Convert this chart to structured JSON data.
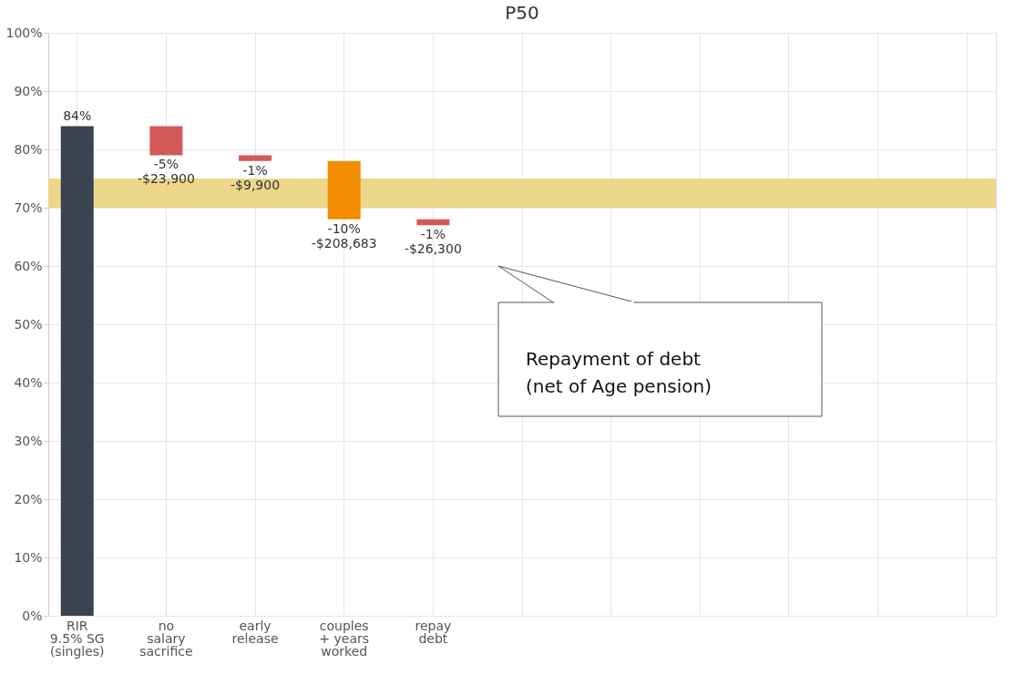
{
  "chart_data": {
    "type": "bar",
    "title": "P50",
    "categories": [
      "RIR\n9.5% SG\n(singles)",
      "no\nsalary\nsacrifice",
      "early\nrelease",
      "couples\n+ years\nworked",
      "repay\ndebt",
      null,
      null,
      null,
      null,
      null,
      null
    ],
    "values": [
      84,
      -5,
      -1,
      -10,
      -1,
      null,
      null,
      null,
      null,
      null,
      null
    ],
    "base": [
      0,
      84,
      79,
      78,
      68,
      null,
      null,
      null,
      null,
      null,
      null
    ],
    "colors": [
      "#3b4350",
      "#d45a5a",
      "#d45a5a",
      "#f28c00",
      "#d45a5a",
      null,
      null,
      null,
      null,
      null,
      null
    ],
    "value_labels": [
      "84%",
      "-5%\n-$23,900",
      "-1%\n-$9,900",
      "-10%\n-$208,683",
      "-1%\n-$26,300",
      null,
      null,
      null,
      null,
      null,
      null
    ],
    "ylim": [
      0,
      100
    ],
    "yticks": [
      {
        "value": 0,
        "label": "0%"
      },
      {
        "value": 10,
        "label": "10%"
      },
      {
        "value": 20,
        "label": "20%"
      },
      {
        "value": 30,
        "label": "30%"
      },
      {
        "value": 40,
        "label": "40%"
      },
      {
        "value": 50,
        "label": "50%"
      },
      {
        "value": 60,
        "label": "60%"
      },
      {
        "value": 70,
        "label": "70%"
      },
      {
        "value": 80,
        "label": "80%"
      },
      {
        "value": 90,
        "label": "90%"
      },
      {
        "value": 100,
        "label": "100%"
      }
    ],
    "bands": [
      {
        "axis": "y",
        "from": 70,
        "to": 75,
        "color": "#ecd78b"
      }
    ],
    "annotations": [
      "Repayment of debt\n(net of Age pension)"
    ],
    "grid": true
  }
}
